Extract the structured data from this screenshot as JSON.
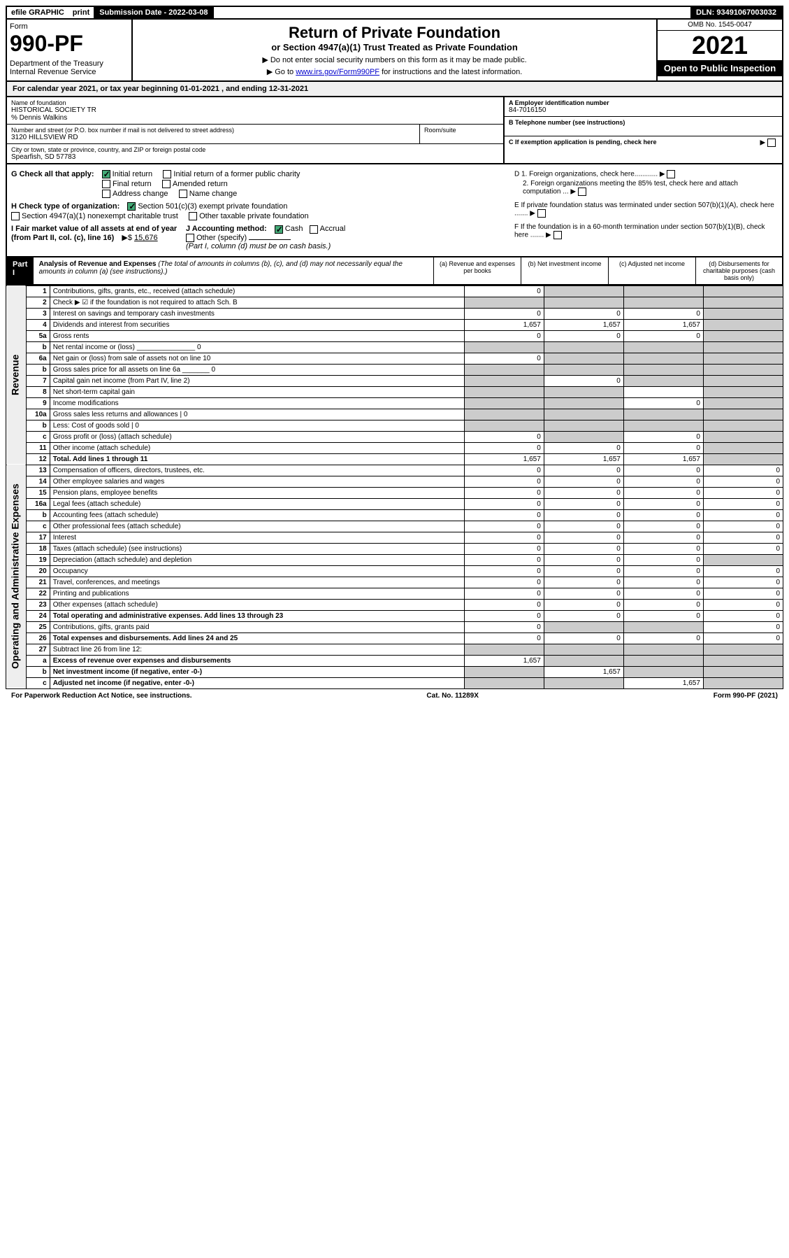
{
  "topbar": {
    "efile": "efile GRAPHIC",
    "print": "print",
    "subdate_label": "Submission Date - 2022-03-08",
    "dln": "DLN: 93491067003032"
  },
  "header": {
    "form_label": "Form",
    "form_num": "990-PF",
    "dept": "Department of the Treasury\nInternal Revenue Service",
    "title1": "Return of Private Foundation",
    "title2": "or Section 4947(a)(1) Trust Treated as Private Foundation",
    "note1": "▶ Do not enter social security numbers on this form as it may be made public.",
    "note2": "▶ Go to ",
    "note2_link": "www.irs.gov/Form990PF",
    "note2_after": " for instructions and the latest information.",
    "omb": "OMB No. 1545-0047",
    "year": "2021",
    "inspect": "Open to Public Inspection"
  },
  "calyear": "For calendar year 2021, or tax year beginning 01-01-2021                              , and ending 12-31-2021",
  "info": {
    "name_label": "Name of foundation",
    "name": "HISTORICAL SOCIETY TR",
    "care_of": "% Dennis Walkins",
    "addr_label": "Number and street (or P.O. box number if mail is not delivered to street address)",
    "addr": "3120 HILLSVIEW RD",
    "room_label": "Room/suite",
    "city_label": "City or town, state or province, country, and ZIP or foreign postal code",
    "city": "Spearfish, SD  57783",
    "ein_label": "A Employer identification number",
    "ein": "84-7016150",
    "phone_label": "B Telephone number (see instructions)",
    "c_label": "C If exemption application is pending, check here",
    "d1": "D 1. Foreign organizations, check here............",
    "d2": "2. Foreign organizations meeting the 85% test, check here and attach computation ...",
    "e_label": "E  If private foundation status was terminated under section 507(b)(1)(A), check here .......",
    "f_label": "F  If the foundation is in a 60-month termination under section 507(b)(1)(B), check here .......",
    "g_label": "G Check all that apply:",
    "g_items": [
      "Initial return",
      "Initial return of a former public charity",
      "Final return",
      "Amended return",
      "Address change",
      "Name change"
    ],
    "h_label": "H Check type of organization:",
    "h_items": [
      "Section 501(c)(3) exempt private foundation",
      "Section 4947(a)(1) nonexempt charitable trust",
      "Other taxable private foundation"
    ],
    "i_label": "I Fair market value of all assets at end of year (from Part II, col. (c), line 16)",
    "i_value": "15,676",
    "j_label": "J Accounting method:",
    "j_cash": "Cash",
    "j_accrual": "Accrual",
    "j_other": "Other (specify)",
    "j_note": "(Part I, column (d) must be on cash basis.)"
  },
  "part1": {
    "label": "Part I",
    "title": "Analysis of Revenue and Expenses",
    "note": "(The total of amounts in columns (b), (c), and (d) may not necessarily equal the amounts in column (a) (see instructions).)",
    "col_a": "(a) Revenue and expenses per books",
    "col_b": "(b) Net investment income",
    "col_c": "(c) Adjusted net income",
    "col_d": "(d) Disbursements for charitable purposes (cash basis only)"
  },
  "side_rev": "Revenue",
  "side_exp": "Operating and Administrative Expenses",
  "rows": [
    {
      "n": "1",
      "d": "Contributions, gifts, grants, etc., received (attach schedule)",
      "a": "0",
      "b": "",
      "c": "",
      "dd": "",
      "sa": false,
      "sb": true,
      "sc": true,
      "sd": true
    },
    {
      "n": "2",
      "d": "Check ▶ ☑ if the foundation is not required to attach Sch. B",
      "a": "",
      "b": "",
      "c": "",
      "dd": "",
      "sa": true,
      "sb": true,
      "sc": true,
      "sd": true,
      "bold_not": true
    },
    {
      "n": "3",
      "d": "Interest on savings and temporary cash investments",
      "a": "0",
      "b": "0",
      "c": "0",
      "dd": "",
      "sa": false,
      "sb": false,
      "sc": false,
      "sd": true
    },
    {
      "n": "4",
      "d": "Dividends and interest from securities",
      "a": "1,657",
      "b": "1,657",
      "c": "1,657",
      "dd": "",
      "sa": false,
      "sb": false,
      "sc": false,
      "sd": true
    },
    {
      "n": "5a",
      "d": "Gross rents",
      "a": "0",
      "b": "0",
      "c": "0",
      "dd": "",
      "sa": false,
      "sb": false,
      "sc": false,
      "sd": true
    },
    {
      "n": "b",
      "d": "Net rental income or (loss) _______________ 0",
      "a": "",
      "b": "",
      "c": "",
      "dd": "",
      "sa": true,
      "sb": true,
      "sc": true,
      "sd": true
    },
    {
      "n": "6a",
      "d": "Net gain or (loss) from sale of assets not on line 10",
      "a": "0",
      "b": "",
      "c": "",
      "dd": "",
      "sa": false,
      "sb": true,
      "sc": true,
      "sd": true
    },
    {
      "n": "b",
      "d": "Gross sales price for all assets on line 6a _______ 0",
      "a": "",
      "b": "",
      "c": "",
      "dd": "",
      "sa": true,
      "sb": true,
      "sc": true,
      "sd": true
    },
    {
      "n": "7",
      "d": "Capital gain net income (from Part IV, line 2)",
      "a": "",
      "b": "0",
      "c": "",
      "dd": "",
      "sa": true,
      "sb": false,
      "sc": true,
      "sd": true
    },
    {
      "n": "8",
      "d": "Net short-term capital gain",
      "a": "",
      "b": "",
      "c": "",
      "dd": "",
      "sa": true,
      "sb": true,
      "sc": false,
      "sd": true
    },
    {
      "n": "9",
      "d": "Income modifications",
      "a": "",
      "b": "",
      "c": "0",
      "dd": "",
      "sa": true,
      "sb": true,
      "sc": false,
      "sd": true
    },
    {
      "n": "10a",
      "d": "Gross sales less returns and allowances  | 0",
      "a": "",
      "b": "",
      "c": "",
      "dd": "",
      "sa": true,
      "sb": true,
      "sc": true,
      "sd": true
    },
    {
      "n": "b",
      "d": "Less: Cost of goods sold  | 0",
      "a": "",
      "b": "",
      "c": "",
      "dd": "",
      "sa": true,
      "sb": true,
      "sc": true,
      "sd": true
    },
    {
      "n": "c",
      "d": "Gross profit or (loss) (attach schedule)",
      "a": "0",
      "b": "",
      "c": "0",
      "dd": "",
      "sa": false,
      "sb": true,
      "sc": false,
      "sd": true
    },
    {
      "n": "11",
      "d": "Other income (attach schedule)",
      "a": "0",
      "b": "0",
      "c": "0",
      "dd": "",
      "sa": false,
      "sb": false,
      "sc": false,
      "sd": true
    },
    {
      "n": "12",
      "d": "Total. Add lines 1 through 11",
      "a": "1,657",
      "b": "1,657",
      "c": "1,657",
      "dd": "",
      "sa": false,
      "sb": false,
      "sc": false,
      "sd": true,
      "bold": true
    },
    {
      "n": "13",
      "d": "Compensation of officers, directors, trustees, etc.",
      "a": "0",
      "b": "0",
      "c": "0",
      "dd": "0",
      "sa": false,
      "sb": false,
      "sc": false,
      "sd": false
    },
    {
      "n": "14",
      "d": "Other employee salaries and wages",
      "a": "0",
      "b": "0",
      "c": "0",
      "dd": "0",
      "sa": false,
      "sb": false,
      "sc": false,
      "sd": false
    },
    {
      "n": "15",
      "d": "Pension plans, employee benefits",
      "a": "0",
      "b": "0",
      "c": "0",
      "dd": "0",
      "sa": false,
      "sb": false,
      "sc": false,
      "sd": false
    },
    {
      "n": "16a",
      "d": "Legal fees (attach schedule)",
      "a": "0",
      "b": "0",
      "c": "0",
      "dd": "0",
      "sa": false,
      "sb": false,
      "sc": false,
      "sd": false
    },
    {
      "n": "b",
      "d": "Accounting fees (attach schedule)",
      "a": "0",
      "b": "0",
      "c": "0",
      "dd": "0",
      "sa": false,
      "sb": false,
      "sc": false,
      "sd": false
    },
    {
      "n": "c",
      "d": "Other professional fees (attach schedule)",
      "a": "0",
      "b": "0",
      "c": "0",
      "dd": "0",
      "sa": false,
      "sb": false,
      "sc": false,
      "sd": false
    },
    {
      "n": "17",
      "d": "Interest",
      "a": "0",
      "b": "0",
      "c": "0",
      "dd": "0",
      "sa": false,
      "sb": false,
      "sc": false,
      "sd": false
    },
    {
      "n": "18",
      "d": "Taxes (attach schedule) (see instructions)",
      "a": "0",
      "b": "0",
      "c": "0",
      "dd": "0",
      "sa": false,
      "sb": false,
      "sc": false,
      "sd": false
    },
    {
      "n": "19",
      "d": "Depreciation (attach schedule) and depletion",
      "a": "0",
      "b": "0",
      "c": "0",
      "dd": "",
      "sa": false,
      "sb": false,
      "sc": false,
      "sd": true
    },
    {
      "n": "20",
      "d": "Occupancy",
      "a": "0",
      "b": "0",
      "c": "0",
      "dd": "0",
      "sa": false,
      "sb": false,
      "sc": false,
      "sd": false
    },
    {
      "n": "21",
      "d": "Travel, conferences, and meetings",
      "a": "0",
      "b": "0",
      "c": "0",
      "dd": "0",
      "sa": false,
      "sb": false,
      "sc": false,
      "sd": false
    },
    {
      "n": "22",
      "d": "Printing and publications",
      "a": "0",
      "b": "0",
      "c": "0",
      "dd": "0",
      "sa": false,
      "sb": false,
      "sc": false,
      "sd": false
    },
    {
      "n": "23",
      "d": "Other expenses (attach schedule)",
      "a": "0",
      "b": "0",
      "c": "0",
      "dd": "0",
      "sa": false,
      "sb": false,
      "sc": false,
      "sd": false
    },
    {
      "n": "24",
      "d": "Total operating and administrative expenses. Add lines 13 through 23",
      "a": "0",
      "b": "0",
      "c": "0",
      "dd": "0",
      "sa": false,
      "sb": false,
      "sc": false,
      "sd": false,
      "bold": true
    },
    {
      "n": "25",
      "d": "Contributions, gifts, grants paid",
      "a": "0",
      "b": "",
      "c": "",
      "dd": "0",
      "sa": false,
      "sb": true,
      "sc": true,
      "sd": false
    },
    {
      "n": "26",
      "d": "Total expenses and disbursements. Add lines 24 and 25",
      "a": "0",
      "b": "0",
      "c": "0",
      "dd": "0",
      "sa": false,
      "sb": false,
      "sc": false,
      "sd": false,
      "bold": true
    },
    {
      "n": "27",
      "d": "Subtract line 26 from line 12:",
      "a": "",
      "b": "",
      "c": "",
      "dd": "",
      "sa": true,
      "sb": true,
      "sc": true,
      "sd": true
    },
    {
      "n": "a",
      "d": "Excess of revenue over expenses and disbursements",
      "a": "1,657",
      "b": "",
      "c": "",
      "dd": "",
      "sa": false,
      "sb": true,
      "sc": true,
      "sd": true,
      "bold": true
    },
    {
      "n": "b",
      "d": "Net investment income (if negative, enter -0-)",
      "a": "",
      "b": "1,657",
      "c": "",
      "dd": "",
      "sa": true,
      "sb": false,
      "sc": true,
      "sd": true,
      "bold": true
    },
    {
      "n": "c",
      "d": "Adjusted net income (if negative, enter -0-)",
      "a": "",
      "b": "",
      "c": "1,657",
      "dd": "",
      "sa": true,
      "sb": true,
      "sc": false,
      "sd": true,
      "bold": true
    }
  ],
  "footer": {
    "left": "For Paperwork Reduction Act Notice, see instructions.",
    "mid": "Cat. No. 11289X",
    "right": "Form 990-PF (2021)"
  },
  "colors": {
    "black": "#000000",
    "link": "#0000cc",
    "shade": "#cccccc",
    "check_green": "#44aa77",
    "side_bg": "#eeeeee"
  }
}
